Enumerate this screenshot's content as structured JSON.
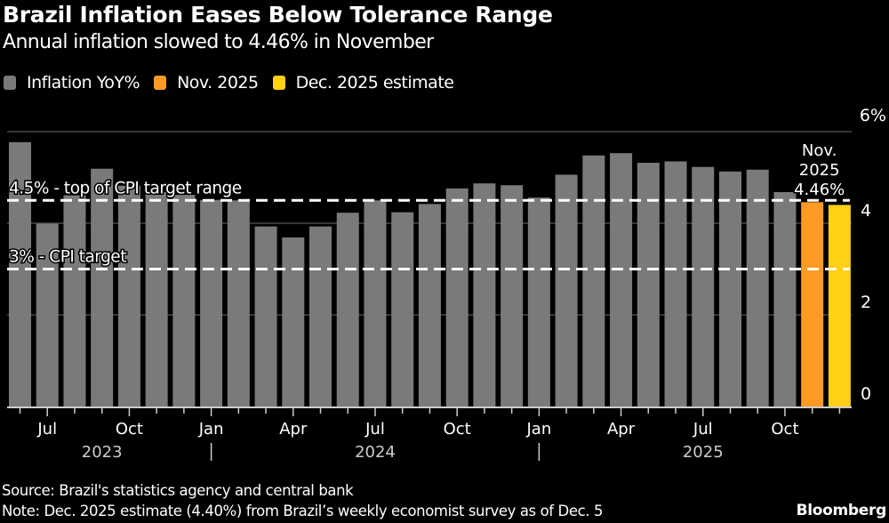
{
  "header": {
    "title": "Brazil Inflation Eases Below Tolerance Range",
    "subtitle": "Annual inflation slowed to 4.46% in November"
  },
  "legend": [
    {
      "label": "Inflation YoY%",
      "color": "#7a7a7a"
    },
    {
      "label": "Nov. 2025",
      "color": "#ff9a25"
    },
    {
      "label": "Dec. 2025 estimate",
      "color": "#ffd015"
    }
  ],
  "chart_data": {
    "type": "bar",
    "title": "Brazil Inflation Eases Below Tolerance Range",
    "subtitle": "Annual inflation slowed to 4.46% in November",
    "xlabel": "",
    "ylabel": "",
    "ylim": [
      0,
      6
    ],
    "yticks": [
      {
        "value": 0,
        "label": "0"
      },
      {
        "value": 2,
        "label": "2"
      },
      {
        "value": 4,
        "label": "4"
      },
      {
        "value": 6,
        "label": "6%"
      }
    ],
    "grid": true,
    "legend_position": "top-left",
    "categories": [
      "Jun 2023",
      "Jul 2023",
      "Aug 2023",
      "Sep 2023",
      "Oct 2023",
      "Nov 2023",
      "Dec 2023",
      "Jan 2024",
      "Feb 2024",
      "Mar 2024",
      "Apr 2024",
      "May 2024",
      "Jun 2024",
      "Jul 2024",
      "Aug 2024",
      "Sep 2024",
      "Oct 2024",
      "Nov 2024",
      "Dec 2024",
      "Jan 2025",
      "Feb 2025",
      "Mar 2025",
      "Apr 2025",
      "May 2025",
      "Jun 2025",
      "Jul 2025",
      "Aug 2025",
      "Sep 2025",
      "Oct 2025",
      "Nov 2025",
      "Dec 2025"
    ],
    "series": [
      {
        "name": "Inflation YoY%",
        "color": "#7a7a7a",
        "values": [
          5.77,
          3.99,
          4.61,
          5.19,
          4.82,
          4.68,
          4.62,
          4.51,
          4.5,
          3.93,
          3.69,
          3.93,
          4.23,
          4.5,
          4.24,
          4.42,
          4.76,
          4.87,
          4.83,
          4.56,
          5.06,
          5.48,
          5.53,
          5.32,
          5.35,
          5.23,
          5.13,
          5.17,
          4.68,
          null,
          null
        ]
      },
      {
        "name": "Nov. 2025",
        "color": "#ff9a25",
        "values": [
          null,
          null,
          null,
          null,
          null,
          null,
          null,
          null,
          null,
          null,
          null,
          null,
          null,
          null,
          null,
          null,
          null,
          null,
          null,
          null,
          null,
          null,
          null,
          null,
          null,
          null,
          null,
          null,
          null,
          4.46,
          null
        ]
      },
      {
        "name": "Dec. 2025 estimate",
        "color": "#ffd015",
        "values": [
          null,
          null,
          null,
          null,
          null,
          null,
          null,
          null,
          null,
          null,
          null,
          null,
          null,
          null,
          null,
          null,
          null,
          null,
          null,
          null,
          null,
          null,
          null,
          null,
          null,
          null,
          null,
          null,
          null,
          null,
          4.4
        ]
      }
    ],
    "xtick_labels": [
      {
        "index": 1,
        "label": "Jul"
      },
      {
        "index": 4,
        "label": "Oct"
      },
      {
        "index": 7,
        "label": "Jan"
      },
      {
        "index": 10,
        "label": "Apr"
      },
      {
        "index": 13,
        "label": "Jul"
      },
      {
        "index": 16,
        "label": "Oct"
      },
      {
        "index": 19,
        "label": "Jan"
      },
      {
        "index": 22,
        "label": "Apr"
      },
      {
        "index": 25,
        "label": "Jul"
      },
      {
        "index": 28,
        "label": "Oct"
      }
    ],
    "year_labels": [
      {
        "index": 3,
        "label": "2023"
      },
      {
        "index": 13,
        "label": "2024"
      },
      {
        "index": 25,
        "label": "2025"
      }
    ],
    "year_separators": [
      7,
      19
    ],
    "reference_lines": [
      {
        "value": 4.5,
        "label": "4.5% - top of CPI target range"
      },
      {
        "value": 3.0,
        "label": "3% - CPI target"
      }
    ],
    "annotations": [
      {
        "index": 29,
        "lines": [
          "Nov.",
          "2025",
          "4.46%"
        ]
      }
    ]
  },
  "footer": {
    "source": "Source: Brazil's statistics agency and central bank",
    "note": "Note: Dec. 2025 estimate (4.40%) from Brazil’s weekly economist survey as of Dec. 5",
    "brand": "Bloomberg"
  }
}
